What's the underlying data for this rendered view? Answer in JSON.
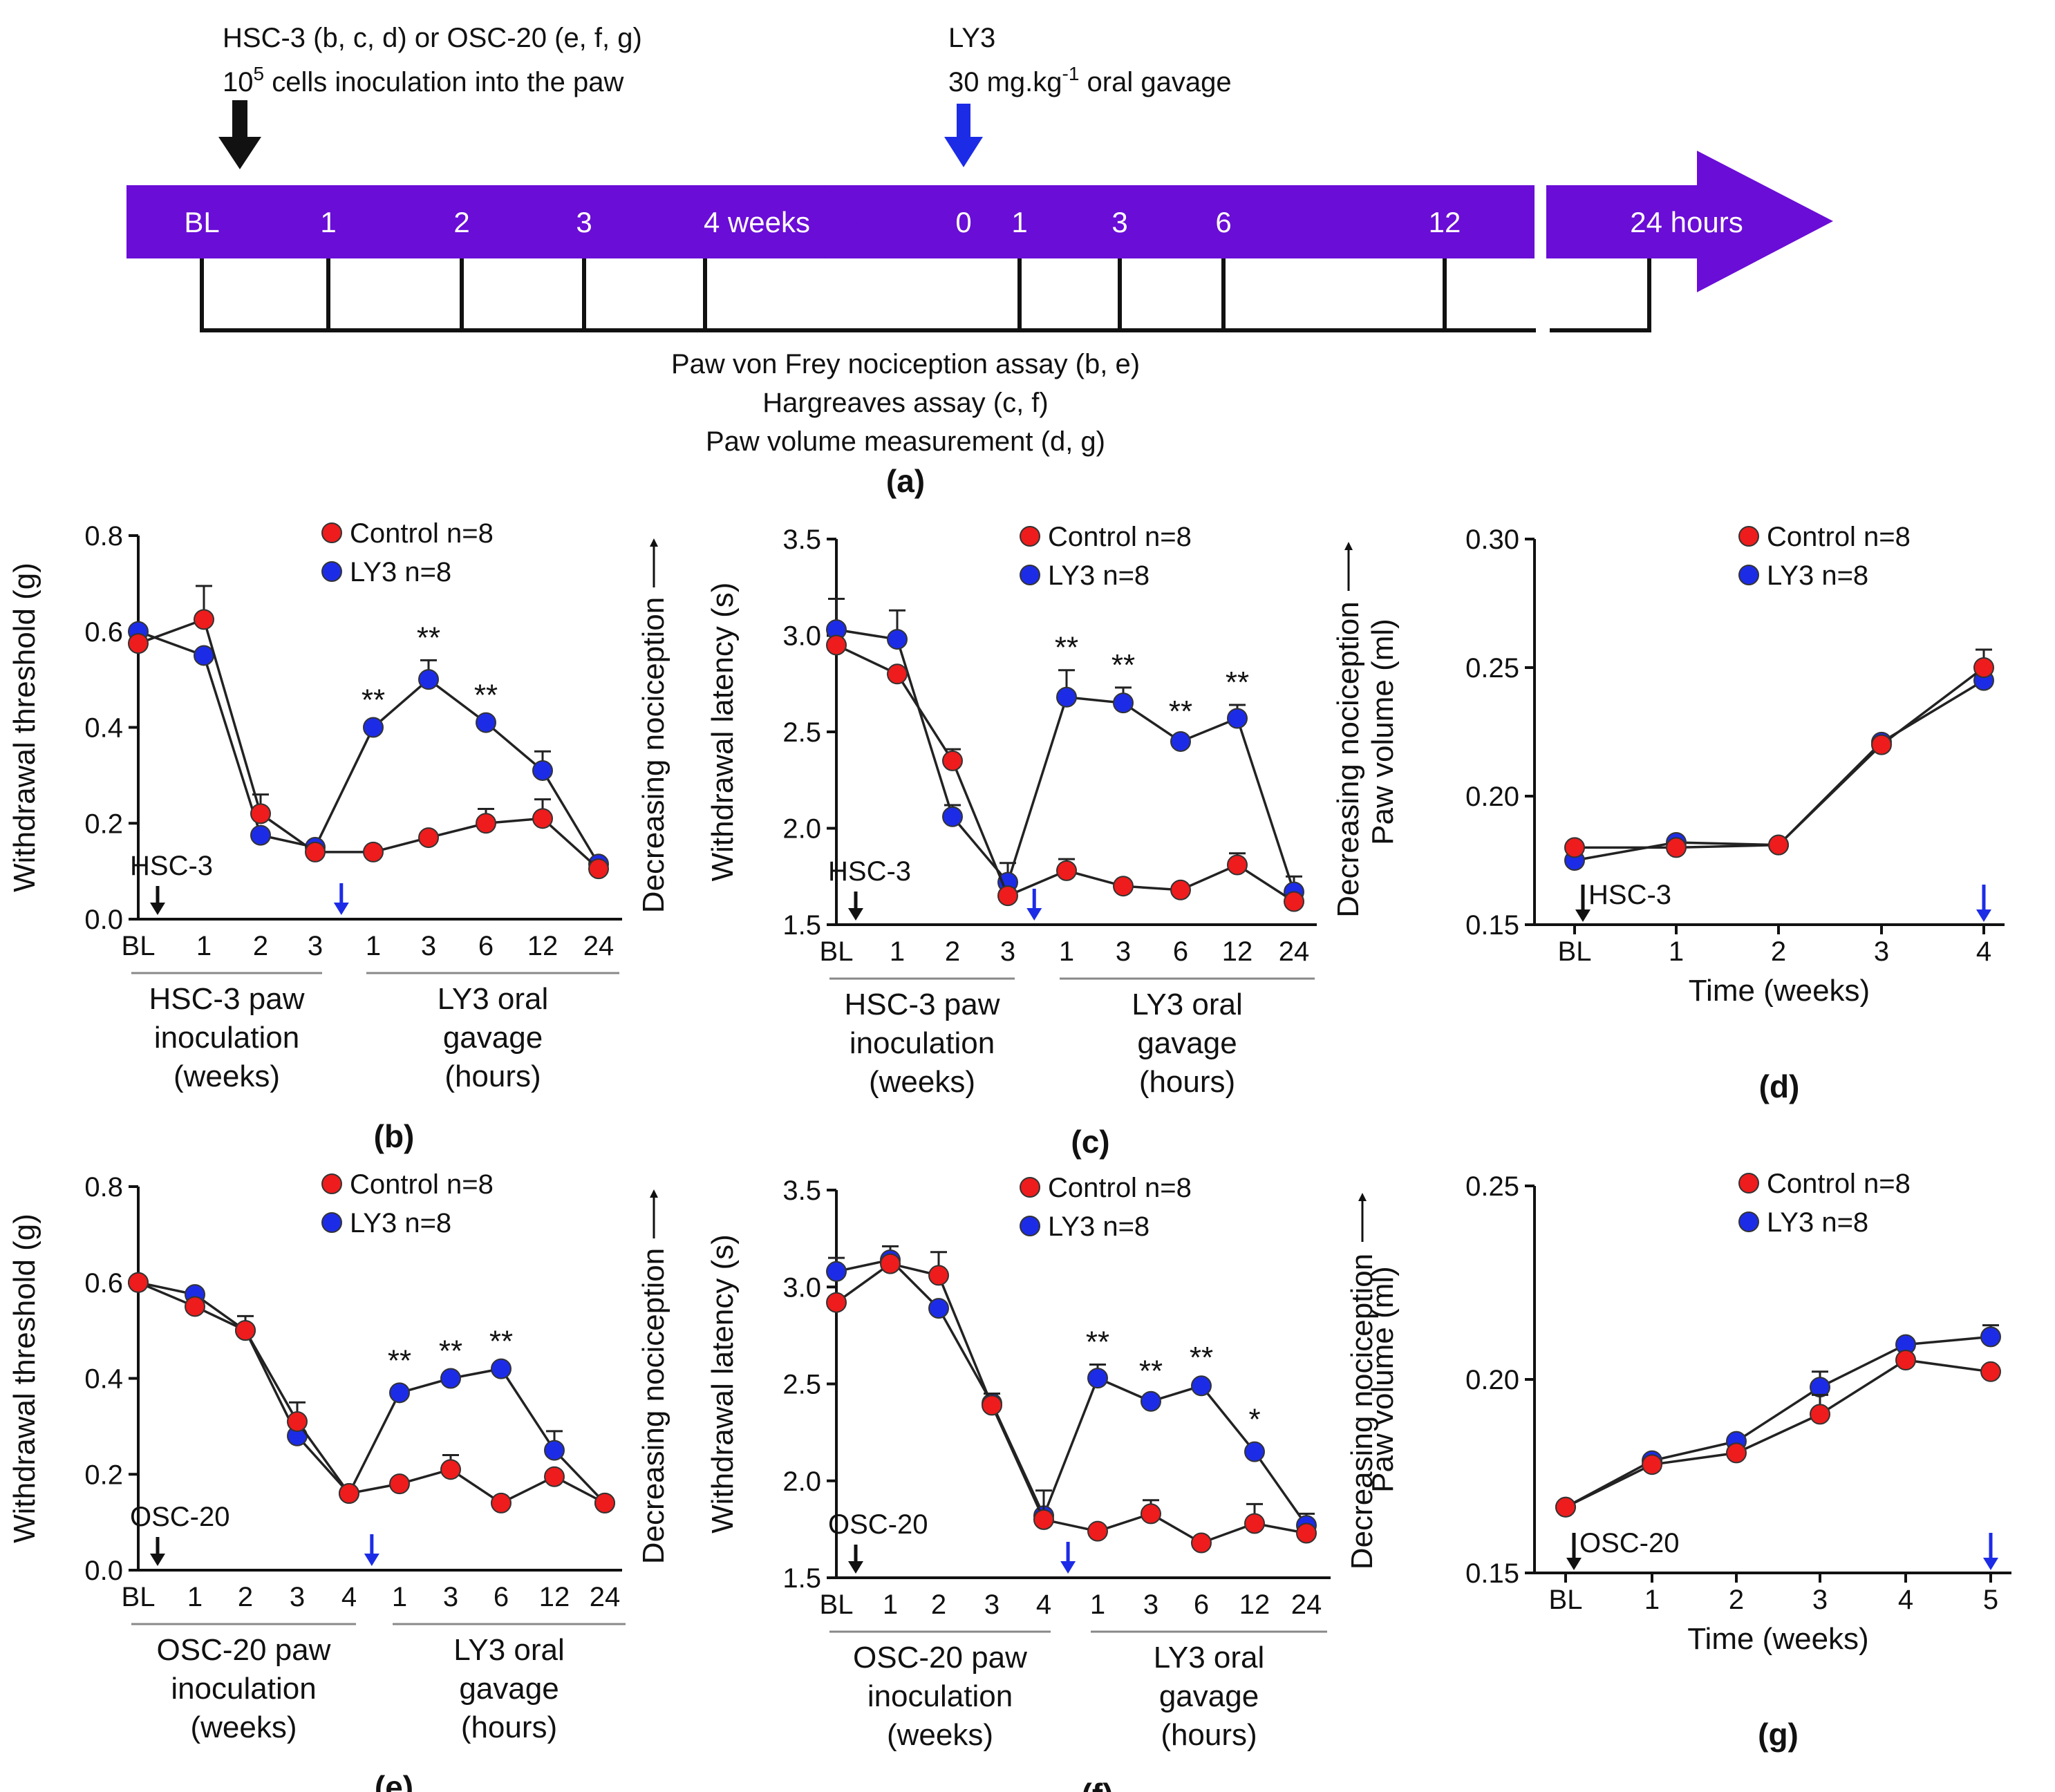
{
  "colors": {
    "purple": "#6a0dd6",
    "control": "#ee1c1c",
    "ly3": "#1c2ce6",
    "black": "#111111",
    "blue_arrow": "#1c2ce6"
  },
  "timeline": {
    "inoculation_line1": "HSC-3 (b, c, d) or OSC-20 (e, f, g)",
    "inoculation_line2_base": "10",
    "inoculation_line2_sup": "5",
    "inoculation_line2_rest": " cells inoculation into the paw",
    "ly3_line1": "LY3",
    "ly3_line2_base": "30 mg.kg",
    "ly3_line2_sup": "-1",
    "ly3_line2_rest": " oral gavage",
    "labels": [
      "BL",
      "1",
      "2",
      "3",
      "4 weeks",
      "0",
      "1",
      "3",
      "6",
      "12",
      "24 hours"
    ],
    "assay1": "Paw von Frey nociception assay (b, e)",
    "assay2": "Hargreaves assay (c, f)",
    "assay3": "Paw volume measurement (d, g)",
    "panel": "(a)"
  },
  "chart_data": [
    {
      "id": "b",
      "type": "line",
      "panel_label": "(b)",
      "ylabel": "Withdrawal threshold (g)",
      "ylim": [
        0,
        0.8
      ],
      "yticks": [
        "0.0",
        "0.2",
        "0.4",
        "0.6",
        "0.8"
      ],
      "categories": [
        "BL",
        "1",
        "2",
        "3",
        "1",
        "3",
        "6",
        "12",
        "24"
      ],
      "series": [
        {
          "name": "Control n=8",
          "values": [
            0.575,
            0.625,
            0.22,
            0.14,
            0.14,
            0.17,
            0.2,
            0.21,
            0.105
          ],
          "err": [
            0.01,
            0.07,
            0.04,
            0.01,
            0.01,
            0.02,
            0.03,
            0.04,
            0.01
          ]
        },
        {
          "name": "LY3 n=8",
          "values": [
            0.6,
            0.55,
            0.175,
            0.15,
            0.4,
            0.5,
            0.41,
            0.31,
            0.115
          ],
          "err": [
            0.01,
            0.02,
            0.01,
            0.01,
            0.01,
            0.04,
            0.01,
            0.04,
            0.01
          ]
        }
      ],
      "significance": [
        {
          "index": 4,
          "label": "**"
        },
        {
          "index": 5,
          "label": "**"
        },
        {
          "index": 6,
          "label": "**"
        }
      ],
      "cell_label": "HSC-3",
      "group1_lines": [
        "HSC-3 paw",
        "inoculation",
        "(weeks)"
      ],
      "group2_lines": [
        "LY3 oral",
        "gavage",
        "(hours)"
      ],
      "side_label": "Decreasing nociception"
    },
    {
      "id": "c",
      "type": "line",
      "panel_label": "(c)",
      "ylabel": "Withdrawal latency (s)",
      "ylim": [
        1.5,
        3.5
      ],
      "yticks": [
        "1.5",
        "2.0",
        "2.5",
        "3.0",
        "3.5"
      ],
      "categories": [
        "BL",
        "1",
        "2",
        "3",
        "1",
        "3",
        "6",
        "12",
        "24"
      ],
      "series": [
        {
          "name": "Control n=8",
          "values": [
            2.95,
            2.8,
            2.35,
            1.65,
            1.78,
            1.7,
            1.68,
            1.81,
            1.62
          ],
          "err": [
            0.02,
            0.02,
            0.06,
            0.02,
            0.06,
            0.04,
            0.04,
            0.06,
            0.02
          ]
        },
        {
          "name": "LY3 n=8",
          "values": [
            3.03,
            2.98,
            2.06,
            1.72,
            2.68,
            2.65,
            2.45,
            2.57,
            1.67
          ],
          "err": [
            0.16,
            0.15,
            0.06,
            0.1,
            0.14,
            0.08,
            0.04,
            0.07,
            0.08
          ]
        }
      ],
      "significance": [
        {
          "index": 4,
          "label": "**"
        },
        {
          "index": 5,
          "label": "**"
        },
        {
          "index": 6,
          "label": "**"
        },
        {
          "index": 7,
          "label": "**"
        }
      ],
      "cell_label": "HSC-3",
      "group1_lines": [
        "HSC-3 paw",
        "inoculation",
        "(weeks)"
      ],
      "group2_lines": [
        "LY3 oral",
        "gavage",
        "(hours)"
      ],
      "side_label": "Decreasing nociception"
    },
    {
      "id": "d",
      "type": "line",
      "panel_label": "(d)",
      "ylabel": "Paw volume (ml)",
      "xlabel": "Time (weeks)",
      "ylim": [
        0.15,
        0.3
      ],
      "yticks": [
        "0.15",
        "0.20",
        "0.25",
        "0.30"
      ],
      "categories": [
        "BL",
        "1",
        "2",
        "3",
        "4"
      ],
      "series": [
        {
          "name": "Control n=8",
          "values": [
            0.18,
            0.18,
            0.181,
            0.22,
            0.25
          ],
          "err": [
            0.001,
            0.001,
            0.001,
            0.002,
            0.007
          ]
        },
        {
          "name": "LY3 n=8",
          "values": [
            0.175,
            0.182,
            0.181,
            0.221,
            0.245
          ],
          "err": [
            0.001,
            0.001,
            0.001,
            0.002,
            0.002
          ]
        }
      ],
      "cell_label": "HSC-3"
    },
    {
      "id": "e",
      "type": "line",
      "panel_label": "(e)",
      "ylabel": "Withdrawal threshold (g)",
      "ylim": [
        0,
        0.8
      ],
      "yticks": [
        "0.0",
        "0.2",
        "0.4",
        "0.6",
        "0.8"
      ],
      "categories": [
        "BL",
        "1",
        "2",
        "3",
        "4",
        "1",
        "3",
        "6",
        "12",
        "24"
      ],
      "series": [
        {
          "name": "Control n=8",
          "values": [
            0.6,
            0.55,
            0.5,
            0.31,
            0.16,
            0.18,
            0.21,
            0.14,
            0.195,
            0.14
          ],
          "err": [
            0.01,
            0.02,
            0.03,
            0.04,
            0.01,
            0.01,
            0.03,
            0.01,
            0.02,
            0.01
          ]
        },
        {
          "name": "LY3 n=8",
          "values": [
            0.6,
            0.575,
            0.5,
            0.28,
            0.16,
            0.37,
            0.4,
            0.42,
            0.25,
            0.14
          ],
          "err": [
            0.01,
            0.02,
            0.02,
            0.03,
            0.01,
            0.02,
            0.01,
            0.01,
            0.04,
            0.01
          ]
        }
      ],
      "significance": [
        {
          "index": 5,
          "label": "**"
        },
        {
          "index": 6,
          "label": "**"
        },
        {
          "index": 7,
          "label": "**"
        }
      ],
      "cell_label": "OSC-20",
      "group1_lines": [
        "OSC-20 paw",
        "inoculation",
        "(weeks)"
      ],
      "group2_lines": [
        "LY3 oral",
        "gavage",
        "(hours)"
      ],
      "side_label": "Decreasing nociception"
    },
    {
      "id": "f",
      "type": "line",
      "panel_label": "(f)",
      "ylabel": "Withdrawal latency (s)",
      "ylim": [
        1.5,
        3.5
      ],
      "yticks": [
        "1.5",
        "2.0",
        "2.5",
        "3.0",
        "3.5"
      ],
      "categories": [
        "BL",
        "1",
        "2",
        "3",
        "4",
        "1",
        "3",
        "6",
        "12",
        "24"
      ],
      "series": [
        {
          "name": "Control n=8",
          "values": [
            2.92,
            3.12,
            3.06,
            2.39,
            1.8,
            1.74,
            1.83,
            1.68,
            1.78,
            1.73
          ],
          "err": [
            0.02,
            0.05,
            0.12,
            0.06,
            0.15,
            0.04,
            0.07,
            0.02,
            0.1,
            0.04
          ]
        },
        {
          "name": "LY3 n=8",
          "values": [
            3.08,
            3.14,
            2.89,
            2.4,
            1.82,
            2.53,
            2.41,
            2.49,
            2.15,
            1.77
          ],
          "err": [
            0.07,
            0.07,
            0.05,
            0.04,
            0.05,
            0.07,
            0.04,
            0.03,
            0.05,
            0.06
          ]
        }
      ],
      "significance": [
        {
          "index": 5,
          "label": "**"
        },
        {
          "index": 6,
          "label": "**"
        },
        {
          "index": 7,
          "label": "**"
        },
        {
          "index": 8,
          "label": "*"
        }
      ],
      "cell_label": "OSC-20",
      "group1_lines": [
        "OSC-20 paw",
        "inoculation",
        "(weeks)"
      ],
      "group2_lines": [
        "LY3 oral",
        "gavage",
        "(hours)"
      ],
      "side_label": "Decreasing nociception"
    },
    {
      "id": "g",
      "type": "line",
      "panel_label": "(g)",
      "ylabel": "Paw volume (ml)",
      "xlabel": "Time (weeks)",
      "ylim": [
        0.15,
        0.25
      ],
      "yticks": [
        "0.15",
        "0.20",
        "0.25"
      ],
      "categories": [
        "BL",
        "1",
        "2",
        "3",
        "4",
        "5"
      ],
      "series": [
        {
          "name": "Control n=8",
          "values": [
            0.167,
            0.178,
            0.181,
            0.191,
            0.205,
            0.202
          ],
          "err": [
            0.001,
            0.001,
            0.002,
            0.005,
            0.002,
            0.002
          ]
        },
        {
          "name": "LY3 n=8",
          "values": [
            0.167,
            0.179,
            0.184,
            0.198,
            0.209,
            0.211
          ],
          "err": [
            0.001,
            0.001,
            0.002,
            0.004,
            0.001,
            0.003
          ]
        }
      ],
      "cell_label": "OSC-20"
    }
  ]
}
